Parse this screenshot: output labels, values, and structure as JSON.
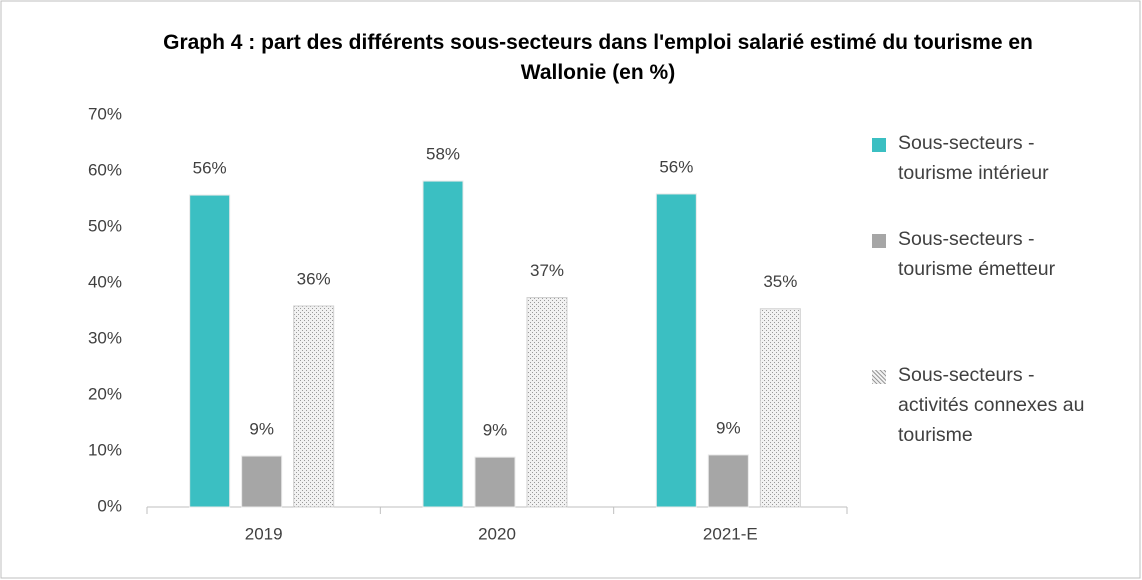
{
  "chart_data": {
    "type": "bar",
    "title": "Graph 4 : part des différents sous-secteurs dans l'emploi salarié estimé du tourisme en Wallonie (en %)",
    "categories": [
      "2019",
      "2020",
      "2021-E"
    ],
    "series": [
      {
        "name": "Sous-secteurs - tourisme intérieur",
        "color": "#3bbfc2",
        "pattern": false,
        "values": [
          55.7,
          58.2,
          55.9
        ],
        "value_labels": [
          "56%",
          "58%",
          "56%"
        ]
      },
      {
        "name": "Sous-secteurs - tourisme émetteur",
        "color": "#a6a6a6",
        "pattern": false,
        "values": [
          9.1,
          8.9,
          9.3
        ],
        "value_labels": [
          "9%",
          "9%",
          "9%"
        ]
      },
      {
        "name": "Sous-secteurs - activités connexes au tourisme",
        "color": "#bdbdbd",
        "pattern": true,
        "values": [
          35.9,
          37.4,
          35.4
        ],
        "value_labels": [
          "36%",
          "37%",
          "35%"
        ]
      }
    ],
    "ylim": [
      0,
      70
    ],
    "yticks": [
      {
        "value": 0,
        "label": "0%"
      },
      {
        "value": 10,
        "label": "10%"
      },
      {
        "value": 20,
        "label": "20%"
      },
      {
        "value": 30,
        "label": "30%"
      },
      {
        "value": 40,
        "label": "40%"
      },
      {
        "value": 50,
        "label": "50%"
      },
      {
        "value": 60,
        "label": "60%"
      },
      {
        "value": 70,
        "label": "70%"
      }
    ],
    "grid": false,
    "legend": "right"
  }
}
